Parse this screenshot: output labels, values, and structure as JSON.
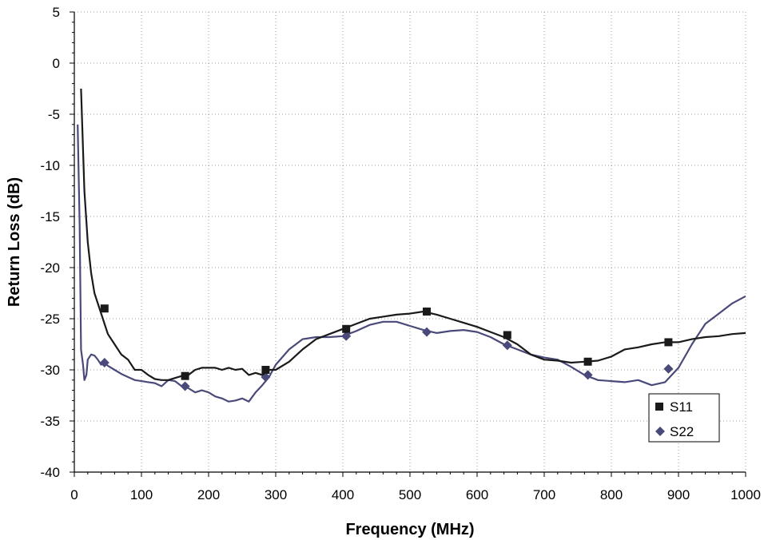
{
  "chart_data": {
    "type": "line",
    "title": "",
    "xlabel": "Frequency (MHz)",
    "ylabel": "Return Loss (dB)",
    "xlim": [
      0,
      1000
    ],
    "ylim": [
      -40,
      5
    ],
    "xticks": [
      0,
      100,
      200,
      300,
      400,
      500,
      600,
      700,
      800,
      900,
      1000
    ],
    "yticks": [
      5,
      0,
      -5,
      -10,
      -15,
      -20,
      -25,
      -30,
      -35,
      -40
    ],
    "grid": true,
    "legend_position": "bottom-right",
    "series": [
      {
        "name": "S11",
        "color": "#1a1a1a",
        "marker": "square",
        "x": [
          10,
          15,
          20,
          25,
          30,
          40,
          45,
          50,
          60,
          70,
          80,
          90,
          100,
          110,
          120,
          130,
          140,
          150,
          160,
          170,
          180,
          190,
          200,
          210,
          220,
          230,
          240,
          250,
          260,
          270,
          280,
          290,
          300,
          320,
          340,
          360,
          380,
          400,
          420,
          440,
          460,
          480,
          500,
          520,
          540,
          560,
          580,
          600,
          620,
          640,
          660,
          680,
          700,
          720,
          740,
          760,
          780,
          800,
          820,
          840,
          860,
          880,
          900,
          920,
          940,
          960,
          980,
          1000
        ],
        "y": [
          -2.5,
          -12.5,
          -17.5,
          -20.5,
          -22.5,
          -24.5,
          -25.5,
          -26.5,
          -27.5,
          -28.5,
          -29.0,
          -30.0,
          -30.0,
          -30.5,
          -30.9,
          -31.0,
          -31.0,
          -30.8,
          -30.6,
          -30.5,
          -30.0,
          -29.8,
          -29.8,
          -29.8,
          -30.0,
          -29.8,
          -30.0,
          -29.9,
          -30.5,
          -30.3,
          -30.5,
          -30.0,
          -30.0,
          -29.2,
          -28.0,
          -27.0,
          -26.5,
          -26.0,
          -25.5,
          -25.0,
          -24.8,
          -24.6,
          -24.5,
          -24.3,
          -24.6,
          -25.0,
          -25.4,
          -25.8,
          -26.3,
          -26.8,
          -27.5,
          -28.5,
          -29.0,
          -29.1,
          -29.3,
          -29.2,
          -29.1,
          -28.7,
          -28.0,
          -27.8,
          -27.5,
          -27.3,
          -27.3,
          -27.0,
          -26.8,
          -26.7,
          -26.5,
          -26.4
        ],
        "markers_x": [
          45,
          165,
          285,
          405,
          525,
          645,
          765,
          885
        ],
        "markers_y": [
          -24.0,
          -30.6,
          -30.0,
          -26.0,
          -24.3,
          -26.6,
          -29.2,
          -27.3
        ]
      },
      {
        "name": "S22",
        "color": "#4a4a7a",
        "marker": "diamond",
        "x": [
          5,
          8,
          10,
          13,
          15,
          18,
          20,
          25,
          30,
          35,
          40,
          45,
          50,
          60,
          70,
          80,
          90,
          100,
          110,
          120,
          130,
          140,
          150,
          160,
          170,
          180,
          190,
          200,
          210,
          220,
          230,
          240,
          250,
          260,
          270,
          280,
          290,
          300,
          320,
          340,
          360,
          380,
          400,
          420,
          440,
          460,
          480,
          500,
          520,
          540,
          560,
          580,
          600,
          620,
          640,
          660,
          680,
          700,
          720,
          740,
          760,
          780,
          800,
          820,
          840,
          860,
          880,
          900,
          920,
          940,
          960,
          980,
          1000
        ],
        "y": [
          -6.0,
          -16.0,
          -28.0,
          -29.5,
          -31.0,
          -30.5,
          -29.0,
          -28.5,
          -28.6,
          -29.0,
          -29.5,
          -29.3,
          -29.6,
          -30.0,
          -30.4,
          -30.7,
          -31.0,
          -31.1,
          -31.2,
          -31.3,
          -31.6,
          -31.0,
          -31.1,
          -31.6,
          -31.8,
          -32.2,
          -32.0,
          -32.2,
          -32.6,
          -32.8,
          -33.1,
          -33.0,
          -32.8,
          -33.1,
          -32.2,
          -31.5,
          -30.7,
          -29.5,
          -28.0,
          -27.0,
          -26.8,
          -26.8,
          -26.7,
          -26.2,
          -25.6,
          -25.3,
          -25.3,
          -25.7,
          -26.1,
          -26.4,
          -26.2,
          -26.1,
          -26.3,
          -26.8,
          -27.5,
          -28.0,
          -28.5,
          -28.8,
          -29.0,
          -29.7,
          -30.5,
          -31.0,
          -31.1,
          -31.2,
          -31.0,
          -31.5,
          -31.2,
          -29.8,
          -27.5,
          -25.5,
          -24.5,
          -23.5,
          -22.8
        ],
        "markers_x": [
          45,
          165,
          285,
          405,
          525,
          645,
          765,
          885
        ],
        "markers_y": [
          -29.3,
          -31.6,
          -30.7,
          -26.7,
          -26.3,
          -27.6,
          -30.5,
          -29.9
        ]
      }
    ]
  }
}
